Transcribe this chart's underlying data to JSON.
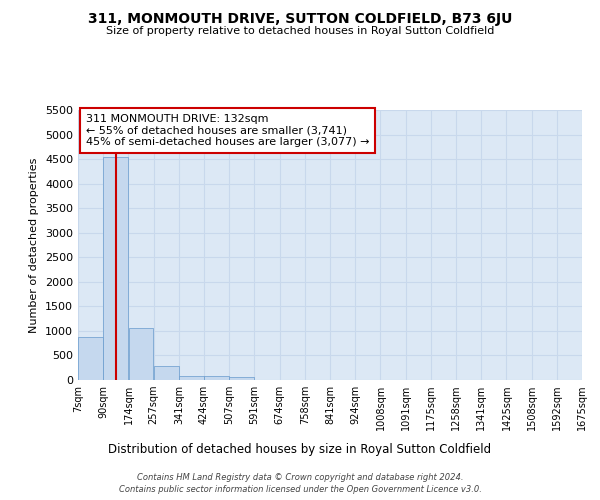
{
  "title": "311, MONMOUTH DRIVE, SUTTON COLDFIELD, B73 6JU",
  "subtitle": "Size of property relative to detached houses in Royal Sutton Coldfield",
  "xlabel": "Distribution of detached houses by size in Royal Sutton Coldfield",
  "ylabel": "Number of detached properties",
  "footnote1": "Contains HM Land Registry data © Crown copyright and database right 2024.",
  "footnote2": "Contains public sector information licensed under the Open Government Licence v3.0.",
  "bar_color": "#c5d8ee",
  "bar_edge_color": "#6699cc",
  "grid_color": "#c8d8ec",
  "bg_color": "#dce8f5",
  "vline_color": "#cc0000",
  "vline_x": 132,
  "annotation_text": "311 MONMOUTH DRIVE: 132sqm\n← 55% of detached houses are smaller (3,741)\n45% of semi-detached houses are larger (3,077) →",
  "annotation_box_color": "#cc0000",
  "ylim": [
    0,
    5500
  ],
  "yticks": [
    0,
    500,
    1000,
    1500,
    2000,
    2500,
    3000,
    3500,
    4000,
    4500,
    5000,
    5500
  ],
  "bin_edges": [
    7,
    90,
    174,
    257,
    341,
    424,
    507,
    591,
    674,
    758,
    841,
    924,
    1008,
    1091,
    1175,
    1258,
    1341,
    1425,
    1508,
    1592,
    1675
  ],
  "bin_labels": [
    "7sqm",
    "90sqm",
    "174sqm",
    "257sqm",
    "341sqm",
    "424sqm",
    "507sqm",
    "591sqm",
    "674sqm",
    "758sqm",
    "841sqm",
    "924sqm",
    "1008sqm",
    "1091sqm",
    "1175sqm",
    "1258sqm",
    "1341sqm",
    "1425sqm",
    "1508sqm",
    "1592sqm",
    "1675sqm"
  ],
  "bar_heights": [
    880,
    4550,
    1060,
    280,
    90,
    80,
    55,
    0,
    0,
    0,
    0,
    0,
    0,
    0,
    0,
    0,
    0,
    0,
    0,
    0
  ]
}
